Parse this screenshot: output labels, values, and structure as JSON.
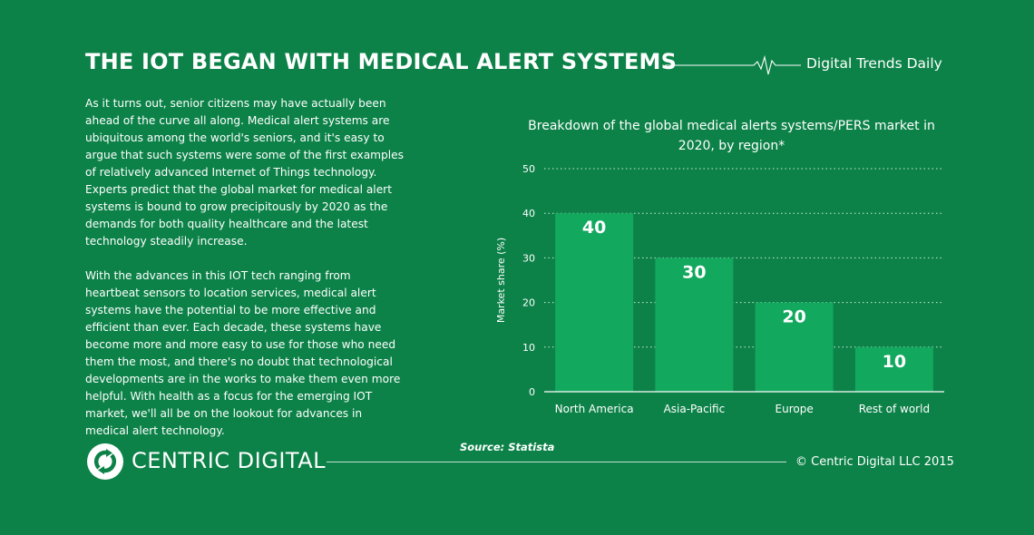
{
  "header": {
    "title": "THE IOT BEGAN WITH MEDICAL ALERT SYSTEMS",
    "brand": "Digital Trends Daily"
  },
  "body": {
    "paragraph_1": "As it turns out, senior citizens may have actually been ahead of the curve all along. Medical alert systems are ubiquitous among the world's seniors, and it's easy to argue that such systems were some of the first examples of relatively advanced Internet of Things technology. Experts predict that the global market for medical alert systems is bound to grow precipitously by 2020 as the demands for both quality healthcare and the latest technology steadily increase.",
    "paragraph_2": "With the advances in this IOT tech ranging from heartbeat sensors to location services, medical alert systems have the potential to be more effective and efficient than ever. Each decade, these systems have become more and more easy to use for those who need them the most, and there's no doubt that technological developments are in the works to make them even more helpful. With health as a focus for the emerging IOT market, we'll all be on the lookout for advances in medical alert technology."
  },
  "footer": {
    "source": "Source: Statista",
    "brand": "CENTRIC DIGITAL",
    "copyright": "© Centric Digital LLC 2015"
  },
  "colors": {
    "background": "#0c8248",
    "bar": "#12a85e",
    "text": "#ffffff"
  },
  "chart_data": {
    "type": "bar",
    "title": "Breakdown of the global medical alerts systems/PERS market in 2020, by region*",
    "xlabel": "",
    "ylabel": "Market share (%)",
    "categories": [
      "North America",
      "Asia-Pacific",
      "Europe",
      "Rest of world"
    ],
    "values": [
      40,
      30,
      20,
      10
    ],
    "ylim": [
      0,
      50
    ],
    "yticks": [
      0,
      10,
      20,
      30,
      40,
      50
    ],
    "grid": true,
    "data_labels": true
  }
}
